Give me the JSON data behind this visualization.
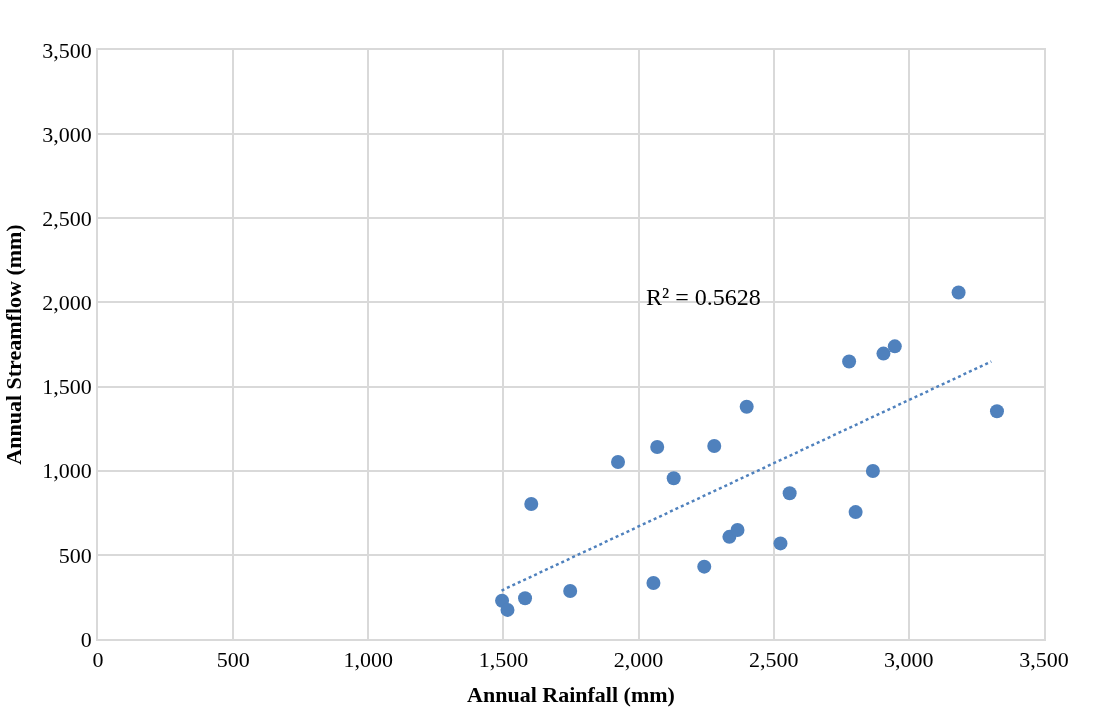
{
  "chart_data": {
    "type": "scatter",
    "xlabel": "Annual Rainfall (mm)",
    "ylabel": "Annual Streamflow (mm)",
    "annotations": [
      "R² = 0.5628"
    ],
    "xlim": [
      0,
      3500
    ],
    "xticks": [
      {
        "value": 0,
        "label": "0"
      },
      {
        "value": 500,
        "label": "500"
      },
      {
        "value": 1000,
        "label": "1,000"
      },
      {
        "value": 1500,
        "label": "1,500"
      },
      {
        "value": 2000,
        "label": "2,000"
      },
      {
        "value": 2500,
        "label": "2,500"
      },
      {
        "value": 3000,
        "label": "3,000"
      },
      {
        "value": 3500,
        "label": "3,500"
      }
    ],
    "ylim": [
      0,
      3500
    ],
    "yticks": [
      {
        "value": 0,
        "label": "0"
      },
      {
        "value": 500,
        "label": "500"
      },
      {
        "value": 1000,
        "label": "1,000"
      },
      {
        "value": 1500,
        "label": "1,500"
      },
      {
        "value": 2000,
        "label": "2,000"
      },
      {
        "value": 2500,
        "label": "2,500"
      },
      {
        "value": 3000,
        "label": "3,000"
      },
      {
        "value": 3500,
        "label": "3,500"
      }
    ],
    "grid": true,
    "series": [
      {
        "marker": "circle",
        "color": "#4f81bd",
        "x": [
          1495,
          1515,
          1580,
          1603,
          1747,
          1924,
          2055,
          2069,
          2130,
          2243,
          2280,
          2336,
          2366,
          2400,
          2525,
          2559,
          2779,
          2803,
          2867,
          2906,
          2948,
          3184,
          3326
        ],
        "values": [
          227,
          173,
          242,
          802,
          285,
          1052,
          333,
          1141,
          955,
          430,
          1147,
          607,
          648,
          1380,
          568,
          866,
          1649,
          754,
          998,
          1696,
          1739,
          2059,
          1353
        ]
      },
      {
        "type": "line",
        "color": "#4f81bd",
        "line_style": "dotted",
        "x": [
          1493,
          3305
        ],
        "values": [
          288,
          1649
        ]
      }
    ]
  }
}
